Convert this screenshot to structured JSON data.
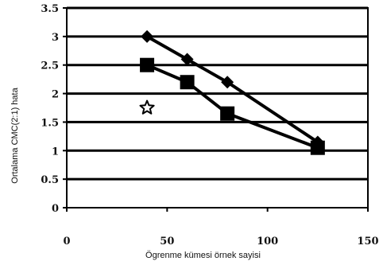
{
  "chart_data": {
    "type": "line",
    "title": "",
    "xlabel": "Ögrenme kümesi örnek sayisi",
    "ylabel": "Ortalama CMC(2:1) hata",
    "xlim": [
      0,
      150
    ],
    "ylim": [
      0,
      3.5
    ],
    "x_ticks": [
      "0",
      "50",
      "100",
      "150"
    ],
    "y_ticks": [
      "0",
      "0.5",
      "1",
      "1.5",
      "2",
      "2.5",
      "3",
      "3.5"
    ],
    "grid": "horizontal",
    "series": [
      {
        "marker": "diamond",
        "color": "#000000",
        "x": [
          40,
          60,
          80,
          125
        ],
        "y": [
          3.0,
          2.6,
          2.2,
          1.15
        ]
      },
      {
        "marker": "square",
        "color": "#000000",
        "x": [
          40,
          60,
          80,
          125
        ],
        "y": [
          2.5,
          2.2,
          1.65,
          1.05
        ]
      },
      {
        "marker": "star",
        "color": "#000000",
        "x": [
          40
        ],
        "y": [
          1.75
        ]
      }
    ]
  }
}
